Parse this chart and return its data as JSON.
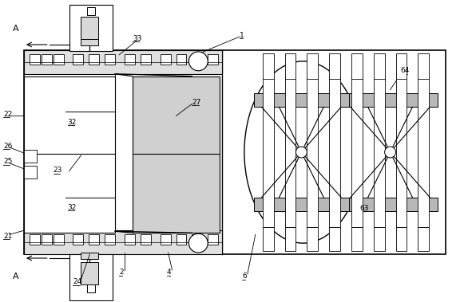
{
  "bg_color": "#ffffff",
  "line_color": "#000000",
  "gray": "#c8c8c8",
  "fig_w": 5.86,
  "fig_h": 3.79,
  "dpi": 100
}
